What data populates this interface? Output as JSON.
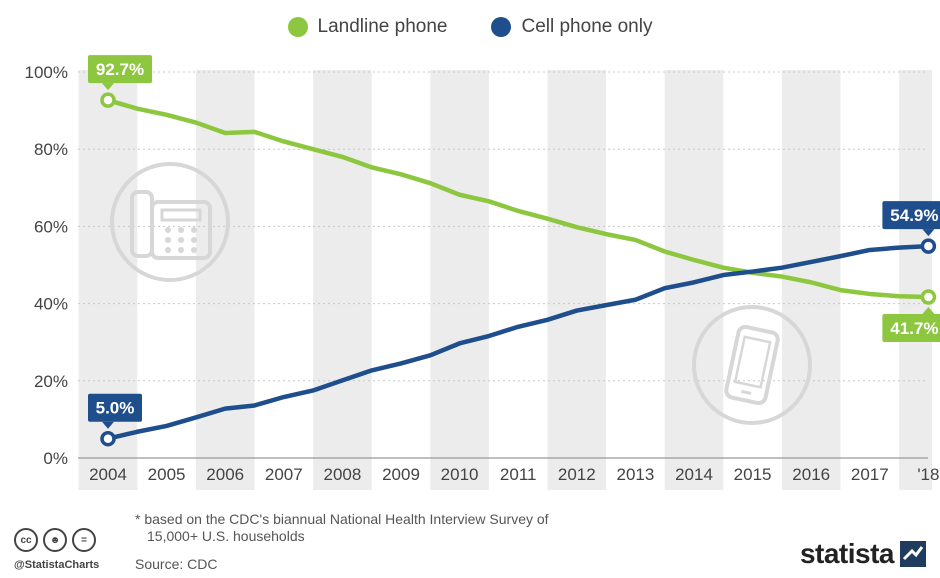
{
  "legend": [
    {
      "label": "Landline phone",
      "color": "#8dc63f"
    },
    {
      "label": "Cell phone only",
      "color": "#1f4e8c"
    }
  ],
  "chart_data": {
    "type": "line",
    "x": [
      2004,
      2004.5,
      2005,
      2005.5,
      2006,
      2006.5,
      2007,
      2007.5,
      2008,
      2008.5,
      2009,
      2009.5,
      2010,
      2010.5,
      2011,
      2011.5,
      2012,
      2012.5,
      2013,
      2013.5,
      2014,
      2014.5,
      2015,
      2015.5,
      2016,
      2016.5,
      2017,
      2017.5,
      2018
    ],
    "x_tick_labels": [
      "2004",
      "2005",
      "2006",
      "2007",
      "2008",
      "2009",
      "2010",
      "2011",
      "2012",
      "2013",
      "2014",
      "2015",
      "2016",
      "2017",
      "'18"
    ],
    "y_tick_labels": [
      "0%",
      "20%",
      "40%",
      "60%",
      "80%",
      "100%"
    ],
    "ylim": [
      0,
      100
    ],
    "series": [
      {
        "name": "Landline phone",
        "color": "#8dc63f",
        "values": [
          92.7,
          90.5,
          88.9,
          86.9,
          84.2,
          84.5,
          82.0,
          80.0,
          78.0,
          75.3,
          73.5,
          71.2,
          68.2,
          66.5,
          64.0,
          62.0,
          59.8,
          58.0,
          56.5,
          53.5,
          51.3,
          49.3,
          48.0,
          47.0,
          45.5,
          43.5,
          42.5,
          41.9,
          41.7
        ]
      },
      {
        "name": "Cell phone only",
        "color": "#1f4e8c",
        "values": [
          5.0,
          6.8,
          8.3,
          10.5,
          12.8,
          13.6,
          15.8,
          17.5,
          20.1,
          22.7,
          24.5,
          26.6,
          29.7,
          31.6,
          34.0,
          35.8,
          38.2,
          39.6,
          41.0,
          44.0,
          45.5,
          47.4,
          48.3,
          49.3,
          50.8,
          52.3,
          53.9,
          54.5,
          54.9
        ]
      }
    ],
    "callouts": [
      {
        "series": 0,
        "point": "first",
        "text": "92.7%",
        "position": "above"
      },
      {
        "series": 1,
        "point": "first",
        "text": "5.0%",
        "position": "above"
      },
      {
        "series": 1,
        "point": "last",
        "text": "54.9%",
        "position": "above"
      },
      {
        "series": 0,
        "point": "last",
        "text": "41.7%",
        "position": "below"
      }
    ],
    "grid": "alternating vertical bands",
    "legend_position": "top-center"
  },
  "icons": [
    "landline-phone-icon",
    "mobile-phone-icon"
  ],
  "footer": {
    "note_line1": "* based on the CDC's biannual National Health Interview Survey of",
    "note_line2": "15,000+ U.S. households",
    "source": "Source: CDC",
    "handle": "@StatistaCharts",
    "brand": "statista"
  }
}
